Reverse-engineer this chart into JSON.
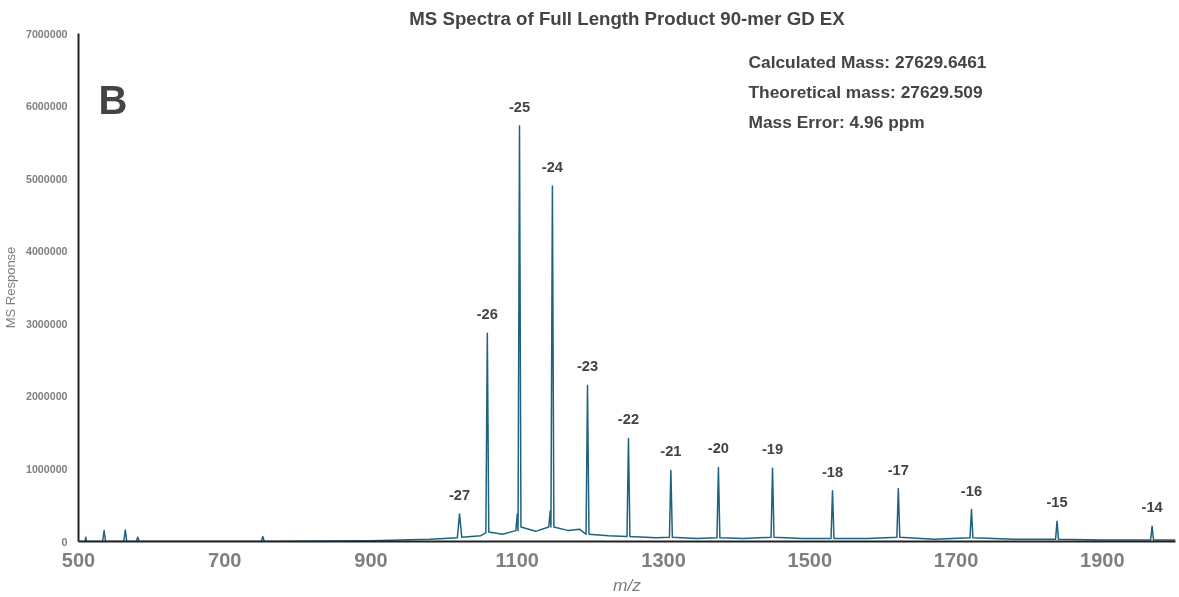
{
  "chart_data": {
    "type": "line",
    "title": "MS Spectra of Full Length Product 90-mer GD EX",
    "xlabel": "m/z",
    "ylabel": "MS Response",
    "xlim": [
      500,
      2000
    ],
    "xticks": [
      500,
      700,
      900,
      1100,
      1300,
      1500,
      1700,
      1900
    ],
    "ylim": [
      0,
      7000000
    ],
    "yticks": [
      0,
      1000000,
      2000000,
      3000000,
      4000000,
      5000000,
      6000000,
      7000000
    ],
    "grid": false,
    "marker": "none",
    "line_style": "solid",
    "series": [
      {
        "color": "#1f6280",
        "x": [
          500,
          509,
          510,
          511,
          533,
          535,
          537,
          562,
          564,
          566,
          579,
          581,
          583,
          750,
          752,
          754,
          900,
          980,
          1000,
          1018,
          1021,
          1024,
          1050,
          1057,
          1059,
          1061,
          1080,
          1098,
          1100,
          1101,
          1103,
          1105,
          1125,
          1143,
          1145,
          1146,
          1148,
          1150,
          1170,
          1185,
          1194,
          1196,
          1198,
          1225,
          1250,
          1252,
          1254,
          1290,
          1308,
          1310,
          1312,
          1345,
          1373,
          1375,
          1377,
          1410,
          1447,
          1449,
          1451,
          1490,
          1529,
          1531,
          1533,
          1580,
          1619,
          1621,
          1623,
          1670,
          1719,
          1721,
          1723,
          1780,
          1836,
          1838,
          1840,
          1900,
          1966,
          1968,
          1970,
          2000
        ],
        "values": [
          0,
          0,
          60000,
          0,
          0,
          150000,
          0,
          0,
          160000,
          0,
          0,
          60000,
          0,
          0,
          70000,
          0,
          10000,
          30000,
          40000,
          50000,
          380000,
          60000,
          80000,
          120000,
          2870000,
          130000,
          100000,
          150000,
          380000,
          150000,
          5730000,
          200000,
          140000,
          200000,
          420000,
          200000,
          4900000,
          200000,
          150000,
          170000,
          100000,
          2150000,
          100000,
          80000,
          70000,
          1420000,
          70000,
          50000,
          60000,
          980000,
          60000,
          40000,
          50000,
          1020000,
          50000,
          40000,
          60000,
          1010000,
          60000,
          40000,
          40000,
          700000,
          40000,
          40000,
          60000,
          730000,
          60000,
          30000,
          50000,
          440000,
          50000,
          30000,
          30000,
          280000,
          30000,
          20000,
          20000,
          210000,
          20000,
          20000
        ]
      }
    ],
    "annotations": [
      "B",
      "Calculated Mass: 27629.6461",
      "Theoretical mass: 27629.509",
      "Mass Error: 4.96 ppm",
      {
        "text": "-27",
        "x": 1021,
        "y": 380000
      },
      {
        "text": "-26",
        "x": 1059,
        "y": 2870000
      },
      {
        "text": "-25",
        "x": 1103,
        "y": 5730000
      },
      {
        "text": "-24",
        "x": 1148,
        "y": 4900000
      },
      {
        "text": "-23",
        "x": 1196,
        "y": 2150000
      },
      {
        "text": "-22",
        "x": 1252,
        "y": 1420000
      },
      {
        "text": "-21",
        "x": 1310,
        "y": 980000
      },
      {
        "text": "-20",
        "x": 1375,
        "y": 1020000
      },
      {
        "text": "-19",
        "x": 1449,
        "y": 1010000
      },
      {
        "text": "-18",
        "x": 1531,
        "y": 700000
      },
      {
        "text": "-17",
        "x": 1621,
        "y": 730000
      },
      {
        "text": "-16",
        "x": 1721,
        "y": 440000
      },
      {
        "text": "-15",
        "x": 1838,
        "y": 280000
      },
      {
        "text": "-14",
        "x": 1968,
        "y": 210000
      }
    ]
  }
}
